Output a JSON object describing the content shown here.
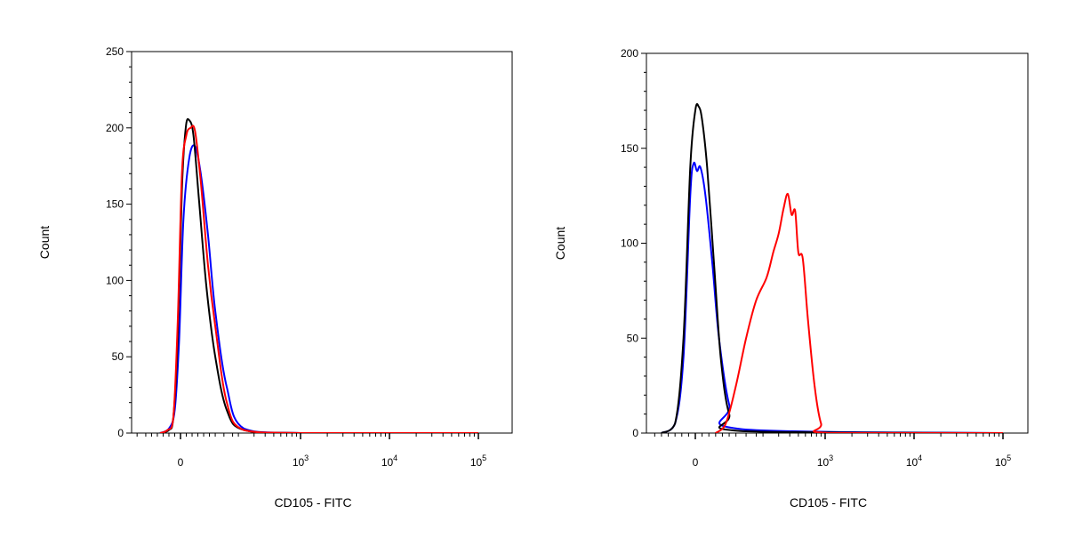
{
  "chart_data": [
    {
      "type": "line",
      "subtype": "flow-cytometry-histogram",
      "xlabel": "CD105 - FITC",
      "ylabel": "Count",
      "x_scale": "logicle (linear near 0, log above)",
      "ylim": [
        0,
        250
      ],
      "yticks": [
        {
          "value": 0,
          "label": "0"
        },
        {
          "value": 50,
          "label": "50"
        },
        {
          "value": 100,
          "label": "100"
        },
        {
          "value": 150,
          "label": "150"
        },
        {
          "value": 200,
          "label": "200"
        },
        {
          "value": 250,
          "label": "250"
        }
      ],
      "xticks": [
        {
          "value": 0,
          "base": "0",
          "exp": ""
        },
        {
          "value": 1000,
          "base": "10",
          "exp": "3"
        },
        {
          "value": 10000,
          "base": "10",
          "exp": "4"
        },
        {
          "value": 100000,
          "base": "10",
          "exp": "5"
        }
      ],
      "grid": false,
      "legend": "none",
      "series": [
        {
          "color": "#0000ff",
          "x": [
            -70,
            -40,
            -20,
            -5,
            10,
            30,
            50,
            70,
            95,
            120,
            160,
            230,
            1000,
            100000
          ],
          "y": [
            0,
            3,
            15,
            60,
            140,
            180,
            188,
            170,
            130,
            80,
            30,
            3,
            0,
            0
          ]
        },
        {
          "color": "#000000",
          "x": [
            -70,
            -40,
            -25,
            -10,
            5,
            18,
            30,
            45,
            65,
            90,
            120,
            160,
            230,
            1000,
            100000
          ],
          "y": [
            0,
            2,
            10,
            60,
            160,
            200,
            205,
            195,
            150,
            95,
            50,
            15,
            2,
            0,
            0
          ]
        },
        {
          "color": "#ff0000",
          "x": [
            -70,
            -45,
            -25,
            -10,
            5,
            20,
            35,
            50,
            70,
            95,
            120,
            160,
            230,
            1000,
            100000
          ],
          "y": [
            0,
            2,
            10,
            70,
            170,
            195,
            200,
            198,
            165,
            110,
            70,
            20,
            2,
            0,
            0
          ]
        }
      ]
    },
    {
      "type": "line",
      "subtype": "flow-cytometry-histogram",
      "xlabel": "CD105 - FITC",
      "ylabel": "Count",
      "x_scale": "logicle (linear near 0, log above)",
      "ylim": [
        0,
        200
      ],
      "yticks": [
        {
          "value": 0,
          "label": "0"
        },
        {
          "value": 50,
          "label": "50"
        },
        {
          "value": 100,
          "label": "100"
        },
        {
          "value": 150,
          "label": "150"
        },
        {
          "value": 200,
          "label": "200"
        }
      ],
      "xticks": [
        {
          "value": 0,
          "base": "0",
          "exp": ""
        },
        {
          "value": 1000,
          "base": "10",
          "exp": "3"
        },
        {
          "value": 10000,
          "base": "10",
          "exp": "4"
        },
        {
          "value": 100000,
          "base": "10",
          "exp": "5"
        }
      ],
      "grid": false,
      "legend": "none",
      "series": [
        {
          "color": "#0000ff",
          "x": [
            -100,
            -60,
            -35,
            -15,
            -5,
            5,
            15,
            30,
            50,
            70,
            100,
            140,
            100000
          ],
          "y": [
            0,
            5,
            40,
            125,
            142,
            138,
            140,
            125,
            90,
            50,
            15,
            2,
            0
          ]
        },
        {
          "color": "#000000",
          "x": [
            -100,
            -60,
            -35,
            -15,
            0,
            10,
            20,
            35,
            55,
            75,
            100,
            140,
            100000
          ],
          "y": [
            0,
            5,
            50,
            140,
            170,
            172,
            165,
            140,
            90,
            40,
            10,
            1,
            0
          ]
        },
        {
          "color": "#ff0000",
          "x": [
            60,
            90,
            120,
            150,
            180,
            220,
            260,
            300,
            340,
            380,
            420,
            460,
            500,
            560,
            640,
            760,
            900,
            1100,
            100000
          ],
          "y": [
            0,
            5,
            25,
            50,
            70,
            82,
            95,
            105,
            118,
            126,
            115,
            117,
            95,
            92,
            60,
            25,
            5,
            0,
            0
          ]
        }
      ]
    }
  ]
}
